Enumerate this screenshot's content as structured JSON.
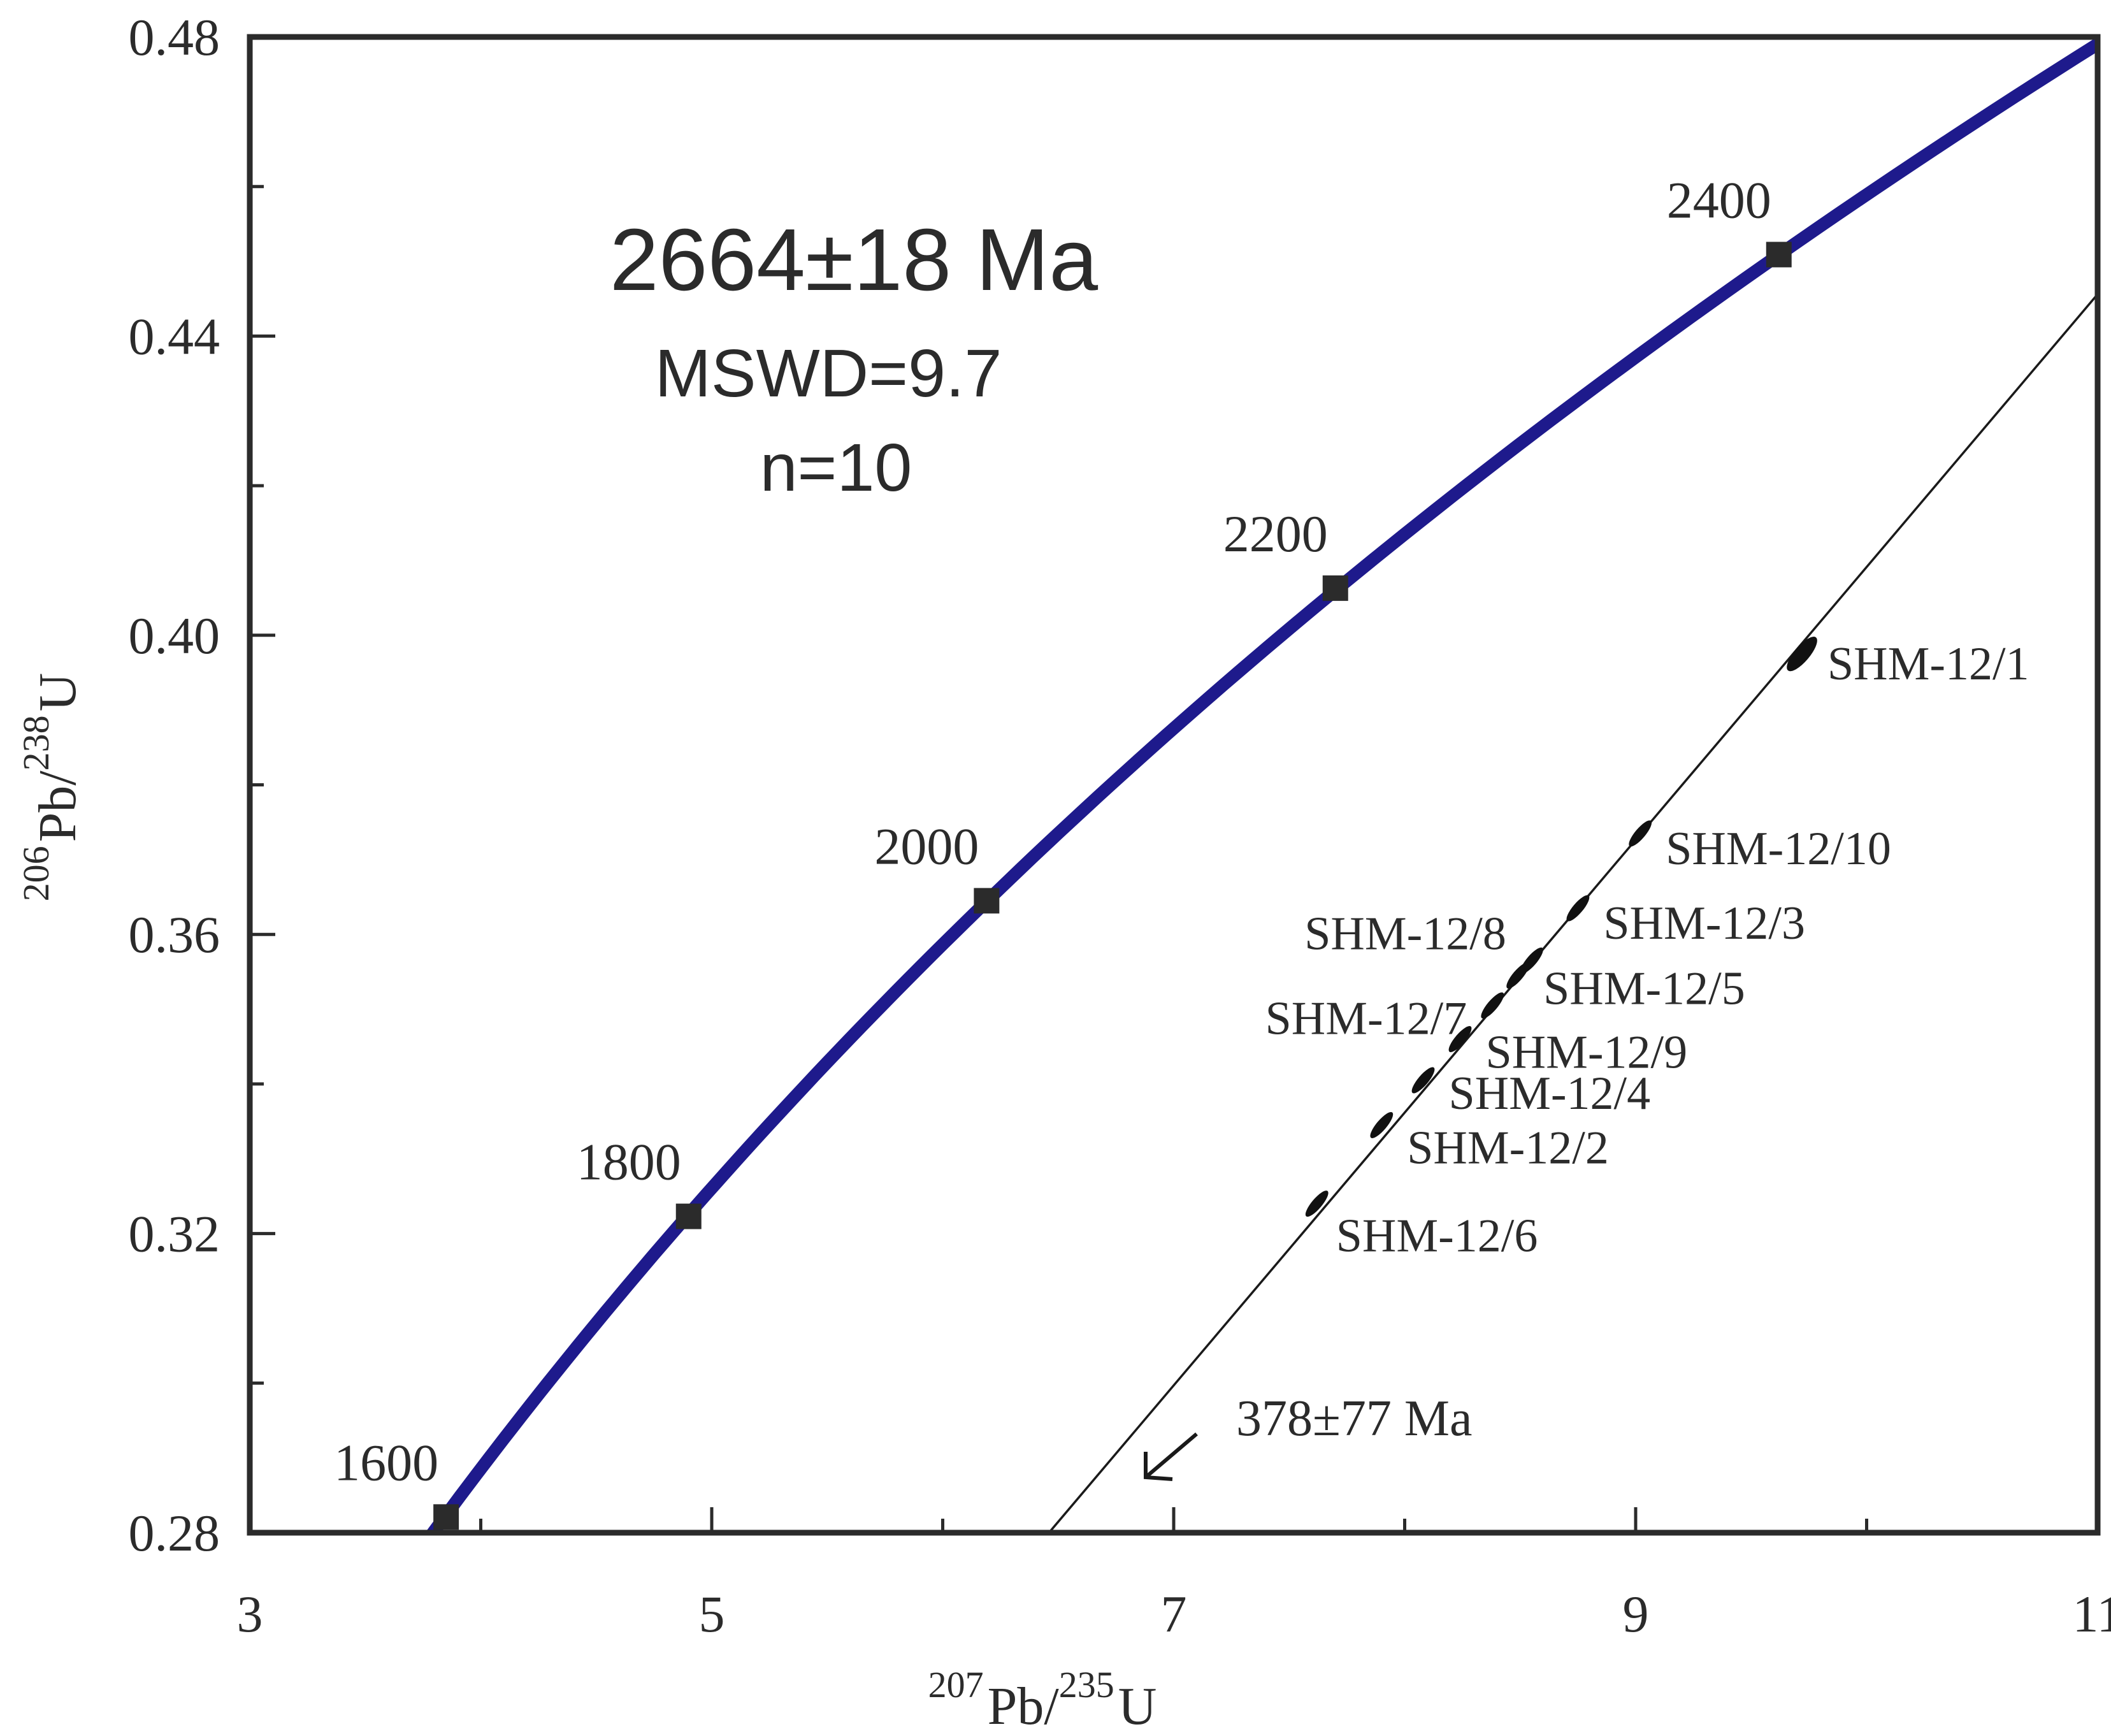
{
  "chart_data": {
    "type": "scatter",
    "subtype": "U-Pb concordia diagram",
    "xlabel": {
      "mass_x": "207",
      "element_x": "Pb/",
      "mass_y": "235",
      "element_y": "U"
    },
    "ylabel": {
      "mass_x": "206",
      "element_x": "Pb/",
      "mass_y": "238",
      "element_y": "U"
    },
    "xlim": [
      3,
      11
    ],
    "ylim": [
      0.28,
      0.48
    ],
    "xticks_major": [
      3,
      5,
      7,
      9,
      11
    ],
    "xtick_labels": [
      "3",
      "5",
      "7",
      "9",
      "11"
    ],
    "xticks_minor": [
      4,
      6,
      8,
      10
    ],
    "yticks_major": [
      0.28,
      0.32,
      0.36,
      0.4,
      0.44,
      0.48
    ],
    "ytick_labels": [
      "0.28",
      "0.32",
      "0.36",
      "0.40",
      "0.44",
      "0.48"
    ],
    "yticks_minor": [
      0.3,
      0.34,
      0.38,
      0.42,
      0.46
    ],
    "concordia": {
      "color": "#1e1a8c",
      "age_markers": [
        {
          "age": "1600",
          "x": 3.85,
          "y": 0.2821
        },
        {
          "age": "1800",
          "x": 4.9,
          "y": 0.3223
        },
        {
          "age": "2000",
          "x": 6.19,
          "y": 0.3645
        },
        {
          "age": "2200",
          "x": 7.7,
          "y": 0.4063
        },
        {
          "age": "2400",
          "x": 9.62,
          "y": 0.4509
        }
      ]
    },
    "discordia": {
      "x": [
        6.46,
        11.0
      ],
      "y": [
        0.28,
        0.4456
      ],
      "lower_intercept_label": "378±77 Ma"
    },
    "samples": [
      {
        "name": "SHM-12/1",
        "x": 9.72,
        "y": 0.3975
      },
      {
        "name": "SHM-12/10",
        "x": 9.02,
        "y": 0.3735
      },
      {
        "name": "SHM-12/3",
        "x": 8.75,
        "y": 0.3635
      },
      {
        "name": "SHM-12/8",
        "x": 8.55,
        "y": 0.3565
      },
      {
        "name": "SHM-12/5",
        "x": 8.49,
        "y": 0.3545
      },
      {
        "name": "SHM-12/7",
        "x": 8.38,
        "y": 0.3505
      },
      {
        "name": "SHM-12/9",
        "x": 8.24,
        "y": 0.346
      },
      {
        "name": "SHM-12/4",
        "x": 8.08,
        "y": 0.3405
      },
      {
        "name": "SHM-12/2",
        "x": 7.9,
        "y": 0.3345
      },
      {
        "name": "SHM-12/6",
        "x": 7.62,
        "y": 0.324
      }
    ],
    "annotations": {
      "age": "2664±18 Ma",
      "mswd": "MSWD=9.7",
      "n": "n=10"
    }
  }
}
